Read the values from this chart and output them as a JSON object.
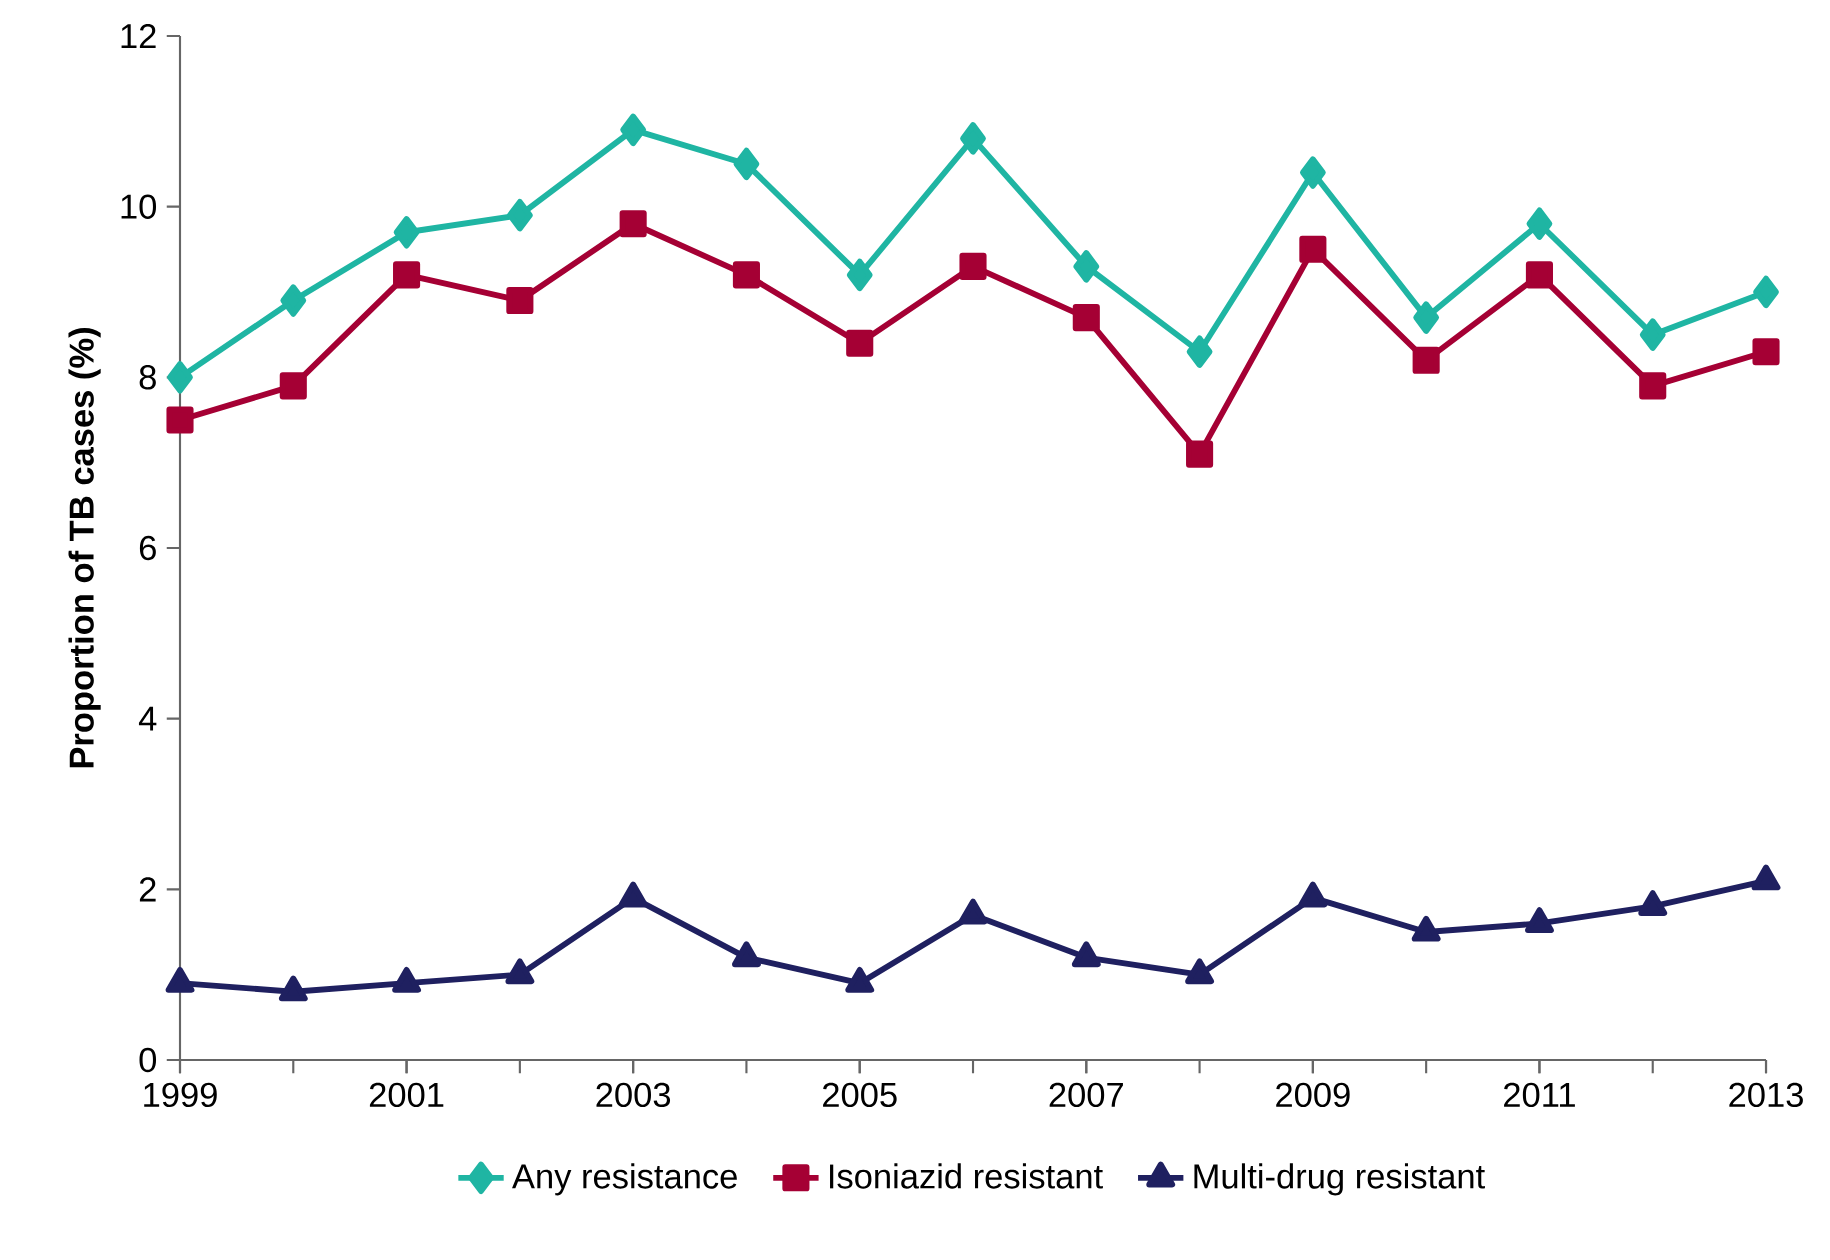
{
  "chart_data": {
    "type": "line",
    "ylabel": "Proportion of TB cases (%)",
    "x": [
      1999,
      2000,
      2001,
      2002,
      2003,
      2004,
      2005,
      2006,
      2007,
      2008,
      2009,
      2010,
      2011,
      2012,
      2013
    ],
    "series": [
      {
        "name": "Any resistance",
        "color": "#1fb5a3",
        "marker": "diamond",
        "values": [
          8.0,
          8.9,
          9.7,
          9.9,
          10.9,
          10.5,
          9.2,
          10.8,
          9.3,
          8.3,
          10.4,
          8.7,
          9.8,
          8.5,
          9.0
        ]
      },
      {
        "name": "Isoniazid resistant",
        "color": "#a50034",
        "marker": "square",
        "values": [
          7.5,
          7.9,
          9.2,
          8.9,
          9.8,
          9.2,
          8.4,
          9.3,
          8.7,
          7.1,
          9.5,
          8.2,
          9.2,
          7.9,
          8.3
        ]
      },
      {
        "name": "Multi-drug resistant",
        "color": "#1f2060",
        "marker": "triangle",
        "values": [
          0.9,
          0.8,
          0.9,
          1.0,
          1.9,
          1.2,
          0.9,
          1.7,
          1.2,
          1.0,
          1.9,
          1.5,
          1.6,
          1.8,
          2.1
        ]
      }
    ],
    "xlim": [
      1999,
      2013
    ],
    "ylim": [
      0,
      12
    ],
    "xticks": [
      1999,
      2001,
      2003,
      2005,
      2007,
      2009,
      2011,
      2013
    ],
    "yticks": [
      0,
      2,
      4,
      6,
      8,
      10,
      12
    ],
    "grid": false,
    "legend": "bottom",
    "line_style": "solid"
  }
}
